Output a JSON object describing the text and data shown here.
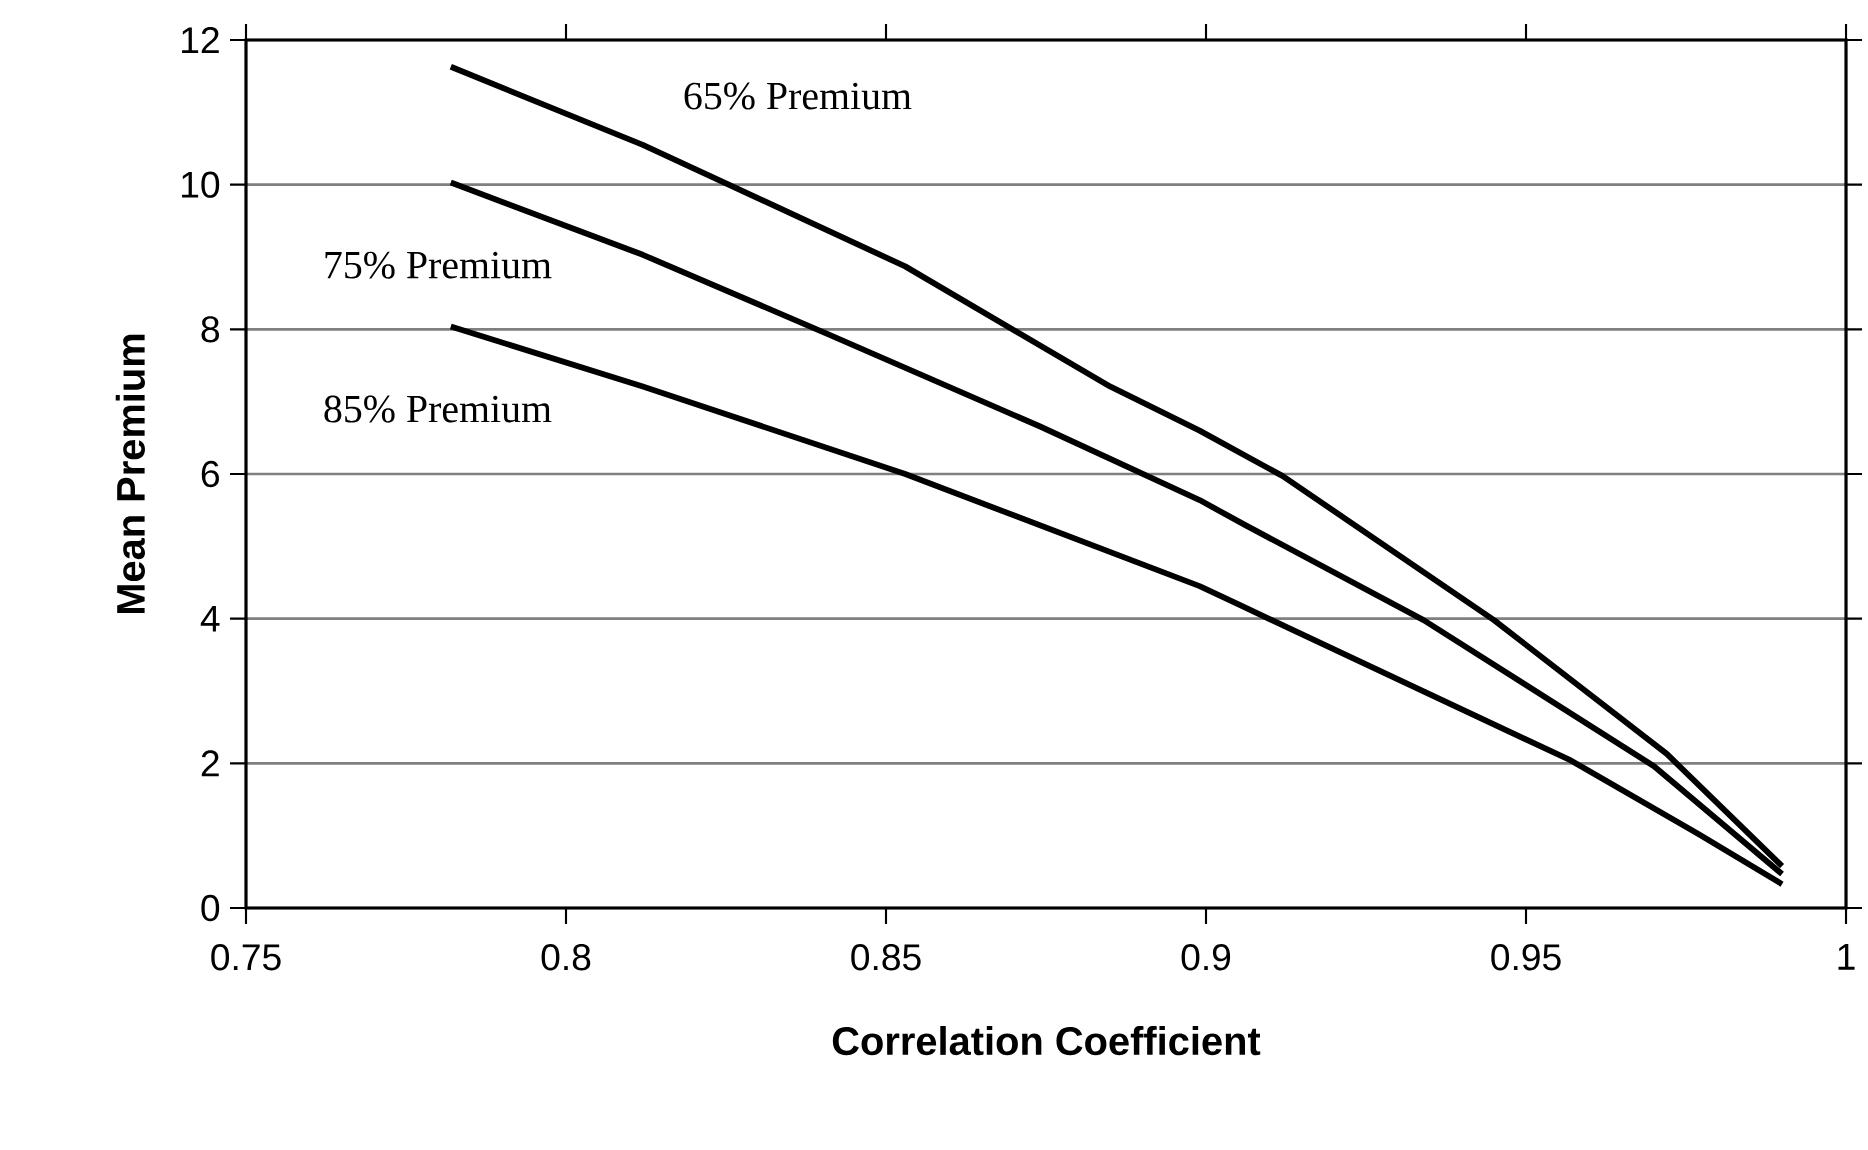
{
  "chart_data": {
    "type": "line",
    "xlabel": "Correlation Coefficient",
    "ylabel": "Mean Premium",
    "xlim": [
      0.75,
      1
    ],
    "xticks": [
      0.75,
      0.8,
      0.85,
      0.9,
      0.95,
      1
    ],
    "ylim": [
      0,
      12
    ],
    "yticks": [
      0,
      2,
      4,
      6,
      8,
      10,
      12
    ],
    "grid": "y",
    "marker": "none",
    "line_style": "solid",
    "series": [
      {
        "name": "65% Premium",
        "color": "#000000",
        "x": [
          0.782,
          0.812,
          0.853,
          0.869,
          0.885,
          0.899,
          0.912,
          0.945,
          0.972,
          0.99
        ],
        "values": [
          11.63,
          10.55,
          8.87,
          8.04,
          7.21,
          6.6,
          5.97,
          3.98,
          2.13,
          0.58
        ]
      },
      {
        "name": "75% Premium",
        "color": "#000000",
        "x": [
          0.782,
          0.812,
          0.841,
          0.874,
          0.899,
          0.906,
          0.934,
          0.97,
          0.99
        ],
        "values": [
          10.03,
          9.03,
          7.93,
          6.66,
          5.64,
          5.3,
          3.98,
          1.96,
          0.47
        ]
      },
      {
        "name": "85% Premium",
        "color": "#000000",
        "x": [
          0.782,
          0.812,
          0.853,
          0.899,
          0.905,
          0.957,
          0.977,
          0.99
        ],
        "values": [
          8.04,
          7.21,
          6.0,
          4.45,
          4.2,
          2.04,
          1.02,
          0.33
        ]
      }
    ]
  }
}
